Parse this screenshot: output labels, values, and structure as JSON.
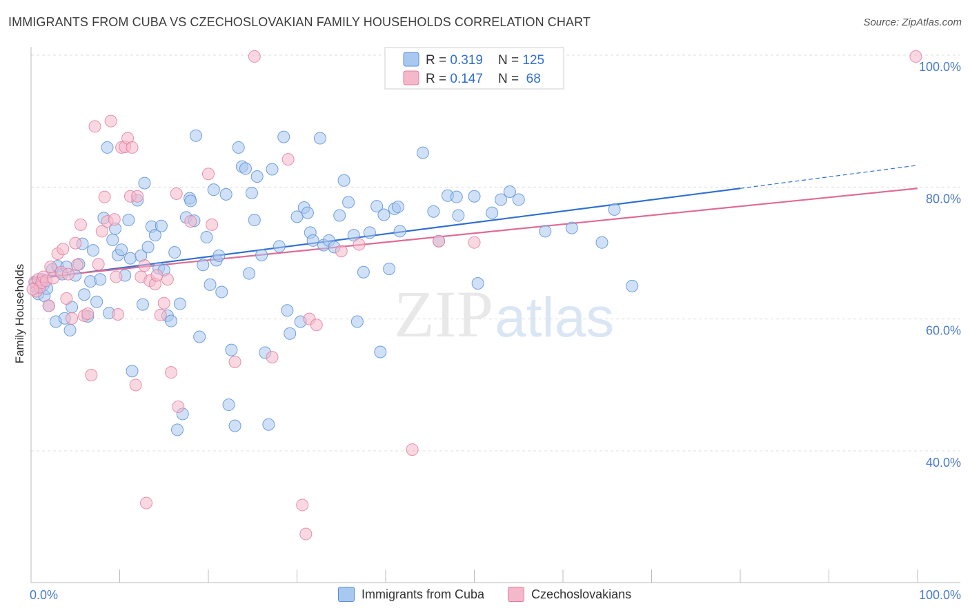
{
  "title": "IMMIGRANTS FROM CUBA VS CZECHOSLOVAKIAN FAMILY HOUSEHOLDS CORRELATION CHART",
  "source": "Source: ZipAtlas.com",
  "watermark": {
    "zip": "ZIP",
    "atlas": "atlas"
  },
  "colors": {
    "blue_fill": "#a9c8f0",
    "blue_stroke": "#5b8fd6",
    "blue_line": "#2f6fd0",
    "pink_fill": "#f5b8cb",
    "pink_stroke": "#e07fa0",
    "pink_line": "#e06b92",
    "tick_label": "#4a7cc9",
    "grid": "#dcdcdc"
  },
  "stats_legend": [
    {
      "r_label": "R = ",
      "r_value": "0.319",
      "n_label": "N = ",
      "n_value": "125"
    },
    {
      "r_label": "R = ",
      "r_value": "0.147",
      "n_label": "N = ",
      "n_value": " 68"
    }
  ],
  "bottom_legend": [
    "Immigrants from Cuba",
    "Czechoslovakians"
  ],
  "chart_data": {
    "type": "scatter",
    "xlabel": "",
    "ylabel": "Family Households",
    "xlim": [
      0,
      100
    ],
    "ylim": [
      20,
      100
    ],
    "x_tick_labels": [
      "0.0%",
      "100.0%"
    ],
    "y_ticks": [
      40,
      60,
      80,
      100
    ],
    "y_tick_labels": [
      "40.0%",
      "60.0%",
      "80.0%",
      "100.0%"
    ],
    "grid": true,
    "legend_position": "top-center",
    "series": [
      {
        "name": "Immigrants from Cuba",
        "color": "blue",
        "trend": {
          "x0": 0,
          "y0": 66.0,
          "x1": 80,
          "y1": 79.8,
          "dash_to_x": 100,
          "dash_to_y": 83.3
        },
        "points": [
          [
            0.5,
            65.5
          ],
          [
            0.6,
            64.8
          ],
          [
            0.8,
            63.8
          ],
          [
            1.0,
            65.0
          ],
          [
            1.2,
            66.0
          ],
          [
            1.4,
            65.2
          ],
          [
            1.5,
            63.5
          ],
          [
            1.8,
            64.6
          ],
          [
            2.0,
            62.0
          ],
          [
            2.4,
            67.5
          ],
          [
            2.8,
            59.6
          ],
          [
            3.0,
            68.0
          ],
          [
            3.5,
            66.8
          ],
          [
            3.8,
            60.1
          ],
          [
            4.0,
            67.9
          ],
          [
            4.4,
            58.3
          ],
          [
            4.6,
            61.8
          ],
          [
            5.0,
            66.6
          ],
          [
            5.4,
            68.3
          ],
          [
            5.8,
            71.4
          ],
          [
            6.0,
            63.7
          ],
          [
            6.4,
            60.4
          ],
          [
            6.7,
            65.7
          ],
          [
            7.0,
            70.4
          ],
          [
            7.4,
            62.6
          ],
          [
            7.8,
            66.0
          ],
          [
            8.2,
            75.3
          ],
          [
            8.6,
            86.0
          ],
          [
            8.8,
            60.9
          ],
          [
            9.2,
            72.0
          ],
          [
            9.5,
            73.7
          ],
          [
            9.8,
            69.7
          ],
          [
            10.2,
            70.5
          ],
          [
            10.6,
            66.6
          ],
          [
            11.0,
            75.0
          ],
          [
            11.2,
            69.2
          ],
          [
            11.4,
            52.1
          ],
          [
            12.0,
            78.0
          ],
          [
            12.4,
            69.6
          ],
          [
            12.6,
            62.2
          ],
          [
            12.8,
            80.6
          ],
          [
            13.2,
            70.9
          ],
          [
            13.6,
            74.0
          ],
          [
            14.0,
            72.7
          ],
          [
            14.4,
            67.7
          ],
          [
            14.7,
            74.1
          ],
          [
            15.0,
            67.4
          ],
          [
            15.4,
            60.5
          ],
          [
            15.8,
            59.7
          ],
          [
            16.2,
            70.1
          ],
          [
            16.5,
            43.2
          ],
          [
            16.8,
            62.3
          ],
          [
            17.1,
            45.6
          ],
          [
            17.5,
            75.4
          ],
          [
            17.9,
            78.3
          ],
          [
            18.0,
            77.9
          ],
          [
            18.4,
            74.9
          ],
          [
            18.6,
            87.8
          ],
          [
            19.0,
            57.3
          ],
          [
            19.4,
            68.2
          ],
          [
            19.8,
            72.4
          ],
          [
            20.2,
            65.2
          ],
          [
            20.6,
            79.6
          ],
          [
            20.9,
            68.9
          ],
          [
            21.2,
            69.6
          ],
          [
            21.5,
            64.1
          ],
          [
            22.0,
            78.9
          ],
          [
            22.3,
            47.0
          ],
          [
            22.6,
            55.3
          ],
          [
            23.0,
            43.8
          ],
          [
            23.4,
            86.0
          ],
          [
            23.8,
            83.1
          ],
          [
            24.2,
            82.8
          ],
          [
            24.6,
            66.9
          ],
          [
            24.9,
            79.1
          ],
          [
            25.2,
            75.0
          ],
          [
            25.5,
            81.6
          ],
          [
            26.0,
            69.7
          ],
          [
            26.4,
            54.9
          ],
          [
            26.8,
            44.0
          ],
          [
            27.2,
            82.7
          ],
          [
            28.0,
            71.0
          ],
          [
            28.5,
            87.6
          ],
          [
            28.9,
            61.3
          ],
          [
            29.2,
            57.8
          ],
          [
            30.0,
            75.5
          ],
          [
            30.4,
            59.6
          ],
          [
            30.8,
            76.9
          ],
          [
            31.2,
            76.1
          ],
          [
            31.5,
            73.1
          ],
          [
            31.8,
            71.9
          ],
          [
            32.6,
            87.4
          ],
          [
            33.0,
            71.2
          ],
          [
            33.6,
            71.9
          ],
          [
            34.2,
            70.9
          ],
          [
            34.8,
            75.7
          ],
          [
            35.3,
            81.0
          ],
          [
            35.8,
            77.7
          ],
          [
            36.4,
            72.7
          ],
          [
            36.8,
            59.6
          ],
          [
            37.5,
            67.1
          ],
          [
            38.2,
            73.1
          ],
          [
            39.0,
            77.1
          ],
          [
            39.4,
            55.0
          ],
          [
            39.8,
            75.8
          ],
          [
            40.4,
            67.6
          ],
          [
            41.0,
            76.7
          ],
          [
            41.4,
            77.0
          ],
          [
            41.6,
            73.3
          ],
          [
            44.2,
            85.2
          ],
          [
            45.4,
            76.3
          ],
          [
            46.0,
            71.8
          ],
          [
            47.0,
            78.7
          ],
          [
            48.0,
            78.5
          ],
          [
            48.2,
            75.7
          ],
          [
            50.0,
            78.6
          ],
          [
            50.4,
            65.4
          ],
          [
            52.0,
            76.1
          ],
          [
            53.0,
            78.1
          ],
          [
            54.0,
            79.3
          ],
          [
            55.0,
            78.1
          ],
          [
            58.0,
            73.3
          ],
          [
            61.0,
            73.8
          ],
          [
            64.4,
            71.6
          ],
          [
            65.8,
            76.6
          ],
          [
            67.8,
            65.0
          ]
        ]
      },
      {
        "name": "Czechoslovakians",
        "color": "pink",
        "trend": {
          "x0": 0,
          "y0": 66.2,
          "x1": 100,
          "y1": 79.8
        },
        "points": [
          [
            0.4,
            65.6
          ],
          [
            0.6,
            64.2
          ],
          [
            0.8,
            66.0
          ],
          [
            1.0,
            64.8
          ],
          [
            1.2,
            65.5
          ],
          [
            1.4,
            66.4
          ],
          [
            1.7,
            65.8
          ],
          [
            2.0,
            62.0
          ],
          [
            2.2,
            67.9
          ],
          [
            2.5,
            66.2
          ],
          [
            3.0,
            69.9
          ],
          [
            3.4,
            67.1
          ],
          [
            3.6,
            70.6
          ],
          [
            4.0,
            63.1
          ],
          [
            4.2,
            66.8
          ],
          [
            4.6,
            60.1
          ],
          [
            5.0,
            71.5
          ],
          [
            5.2,
            68.2
          ],
          [
            5.6,
            74.3
          ],
          [
            6.0,
            60.5
          ],
          [
            6.4,
            60.8
          ],
          [
            6.8,
            51.5
          ],
          [
            7.2,
            89.2
          ],
          [
            7.6,
            68.3
          ],
          [
            8.0,
            73.3
          ],
          [
            8.3,
            78.5
          ],
          [
            8.6,
            74.8
          ],
          [
            9.0,
            90.0
          ],
          [
            9.4,
            75.1
          ],
          [
            9.6,
            66.4
          ],
          [
            9.8,
            60.7
          ],
          [
            10.2,
            86.0
          ],
          [
            10.6,
            86.1
          ],
          [
            10.9,
            87.4
          ],
          [
            11.2,
            78.6
          ],
          [
            11.4,
            86.0
          ],
          [
            11.8,
            50.0
          ],
          [
            12.0,
            78.6
          ],
          [
            12.4,
            66.4
          ],
          [
            12.8,
            68.1
          ],
          [
            13.0,
            32.1
          ],
          [
            13.4,
            65.8
          ],
          [
            14.0,
            65.3
          ],
          [
            14.2,
            66.6
          ],
          [
            14.6,
            60.6
          ],
          [
            15.0,
            62.4
          ],
          [
            15.4,
            66.0
          ],
          [
            15.8,
            51.9
          ],
          [
            16.4,
            79.0
          ],
          [
            16.6,
            46.7
          ],
          [
            18.0,
            74.8
          ],
          [
            20.0,
            82.0
          ],
          [
            20.4,
            74.3
          ],
          [
            23.0,
            53.5
          ],
          [
            25.2,
            99.8
          ],
          [
            27.2,
            54.2
          ],
          [
            29.0,
            84.2
          ],
          [
            30.6,
            31.8
          ],
          [
            31.0,
            27.4
          ],
          [
            31.4,
            60.0
          ],
          [
            32.2,
            59.1
          ],
          [
            35.0,
            70.3
          ],
          [
            37.0,
            71.3
          ],
          [
            43.0,
            40.2
          ],
          [
            46.0,
            71.8
          ],
          [
            50.0,
            71.6
          ],
          [
            99.8,
            99.8
          ],
          [
            0.2,
            64.5
          ]
        ]
      }
    ]
  }
}
